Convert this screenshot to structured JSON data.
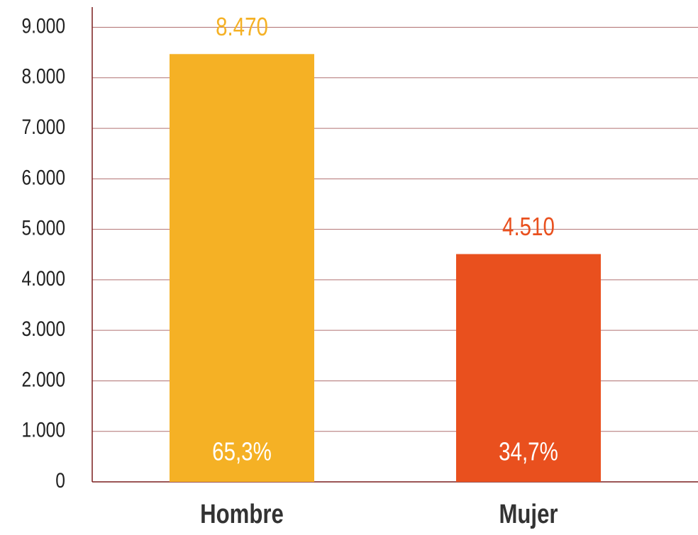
{
  "chart_data": {
    "type": "bar",
    "categories": [
      "Hombre",
      "Mujer"
    ],
    "values": [
      8470,
      4510
    ],
    "value_labels": [
      "8.470",
      "4.510"
    ],
    "shares": [
      65.3,
      34.7
    ],
    "share_labels": [
      "65,3%",
      "34,7%"
    ],
    "colors": [
      "#f5b125",
      "#e9501e"
    ],
    "ylim": [
      0,
      9400
    ],
    "yticks": [
      0,
      {
        "value": 1000,
        "label": "1.000"
      },
      {
        "value": 2000,
        "label": "2.000"
      },
      {
        "value": 3000,
        "label": "3.000"
      },
      {
        "value": 4000,
        "label": "4.000"
      },
      {
        "value": 5000,
        "label": "5.000"
      },
      {
        "value": 6000,
        "label": "6.000"
      },
      {
        "value": 7000,
        "label": "7.000"
      },
      {
        "value": 8000,
        "label": "8.000"
      },
      {
        "value": 9000,
        "label": "9.000"
      }
    ],
    "grid": true
  }
}
